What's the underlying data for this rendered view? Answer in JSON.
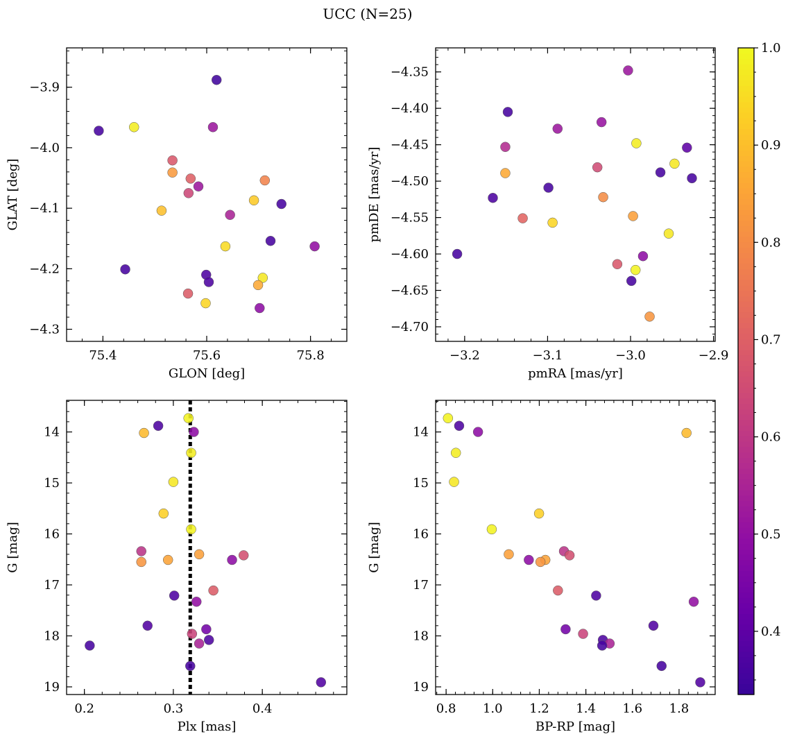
{
  "figure": {
    "title": "UCC (N=25)"
  },
  "colorbar": {
    "ticks": [
      0.4,
      0.5,
      0.6,
      0.7,
      0.8,
      0.9,
      1.0
    ],
    "tick_labels": [
      "0.4",
      "0.5",
      "0.6",
      "0.7",
      "0.8",
      "0.9",
      "1.0"
    ],
    "range": [
      0.335,
      1.0
    ],
    "colormap": "plasma"
  },
  "chart_data": [
    {
      "id": "galactic",
      "type": "scatter",
      "xlabel": "GLON [deg]",
      "ylabel": "GLAT [deg]",
      "xlim": [
        75.33,
        75.87
      ],
      "ylim": [
        -4.32,
        -3.835
      ],
      "xticks": [
        75.4,
        75.6,
        75.8
      ],
      "xtick_labels": [
        "75.4",
        "75.6",
        "75.8"
      ],
      "yticks": [
        -3.9,
        -4.0,
        -4.1,
        -4.2,
        -4.3
      ],
      "ytick_labels": [
        "−3.9",
        "−4.0",
        "−4.1",
        "−4.2",
        "−4.3"
      ],
      "points": [
        {
          "x": 75.619,
          "y": -3.888,
          "c": 0.35
        },
        {
          "x": 75.392,
          "y": -3.972,
          "c": 0.36
        },
        {
          "x": 75.46,
          "y": -3.966,
          "c": 0.98
        },
        {
          "x": 75.612,
          "y": -3.966,
          "c": 0.52
        },
        {
          "x": 75.534,
          "y": -4.021,
          "c": 0.68
        },
        {
          "x": 75.534,
          "y": -4.041,
          "c": 0.83
        },
        {
          "x": 75.569,
          "y": -4.051,
          "c": 0.7
        },
        {
          "x": 75.712,
          "y": -4.054,
          "c": 0.78
        },
        {
          "x": 75.584,
          "y": -4.064,
          "c": 0.52
        },
        {
          "x": 75.565,
          "y": -4.075,
          "c": 0.64
        },
        {
          "x": 75.691,
          "y": -4.087,
          "c": 0.92
        },
        {
          "x": 75.744,
          "y": -4.093,
          "c": 0.36
        },
        {
          "x": 75.513,
          "y": -4.104,
          "c": 0.9
        },
        {
          "x": 75.645,
          "y": -4.111,
          "c": 0.55
        },
        {
          "x": 75.723,
          "y": -4.154,
          "c": 0.36
        },
        {
          "x": 75.636,
          "y": -4.163,
          "c": 0.95
        },
        {
          "x": 75.808,
          "y": -4.163,
          "c": 0.5
        },
        {
          "x": 75.443,
          "y": -4.201,
          "c": 0.36
        },
        {
          "x": 75.599,
          "y": -4.21,
          "c": 0.37
        },
        {
          "x": 75.604,
          "y": -4.222,
          "c": 0.37
        },
        {
          "x": 75.708,
          "y": -4.215,
          "c": 0.97
        },
        {
          "x": 75.699,
          "y": -4.227,
          "c": 0.86
        },
        {
          "x": 75.564,
          "y": -4.241,
          "c": 0.69
        },
        {
          "x": 75.598,
          "y": -4.257,
          "c": 0.94
        },
        {
          "x": 75.702,
          "y": -4.265,
          "c": 0.49
        }
      ]
    },
    {
      "id": "propermotion",
      "type": "scatter",
      "xlabel": "pmRA [mas/yr]",
      "ylabel": "pmDE [mas/yr]",
      "xlim": [
        -3.235,
        -2.898
      ],
      "ylim": [
        -4.72,
        -4.317
      ],
      "xticks": [
        -3.2,
        -3.1,
        -3.0,
        -2.9
      ],
      "xtick_labels": [
        "−3.2",
        "−3.1",
        "−3.0",
        "−2.9"
      ],
      "yticks": [
        -4.35,
        -4.4,
        -4.45,
        -4.5,
        -4.55,
        -4.6,
        -4.65,
        -4.7
      ],
      "ytick_labels": [
        "−4.35",
        "−4.40",
        "−4.45",
        "−4.50",
        "−4.55",
        "−4.60",
        "−4.65",
        "−4.70"
      ],
      "points": [
        {
          "x": -3.003,
          "y": -4.348,
          "c": 0.52
        },
        {
          "x": -3.148,
          "y": -4.405,
          "c": 0.36
        },
        {
          "x": -3.035,
          "y": -4.419,
          "c": 0.51
        },
        {
          "x": -3.088,
          "y": -4.428,
          "c": 0.52
        },
        {
          "x": -2.993,
          "y": -4.448,
          "c": 0.98
        },
        {
          "x": -3.151,
          "y": -4.453,
          "c": 0.57
        },
        {
          "x": -2.932,
          "y": -4.454,
          "c": 0.4
        },
        {
          "x": -2.947,
          "y": -4.476,
          "c": 0.97
        },
        {
          "x": -3.04,
          "y": -4.481,
          "c": 0.65
        },
        {
          "x": -2.964,
          "y": -4.488,
          "c": 0.36
        },
        {
          "x": -3.151,
          "y": -4.489,
          "c": 0.86
        },
        {
          "x": -2.926,
          "y": -4.496,
          "c": 0.36
        },
        {
          "x": -3.099,
          "y": -4.509,
          "c": 0.36
        },
        {
          "x": -3.033,
          "y": -4.522,
          "c": 0.8
        },
        {
          "x": -3.166,
          "y": -4.523,
          "c": 0.37
        },
        {
          "x": -2.997,
          "y": -4.548,
          "c": 0.84
        },
        {
          "x": -3.13,
          "y": -4.551,
          "c": 0.71
        },
        {
          "x": -3.094,
          "y": -4.557,
          "c": 0.94
        },
        {
          "x": -2.954,
          "y": -4.572,
          "c": 0.97
        },
        {
          "x": -3.209,
          "y": -4.6,
          "c": 0.36
        },
        {
          "x": -2.985,
          "y": -4.603,
          "c": 0.49
        },
        {
          "x": -3.016,
          "y": -4.614,
          "c": 0.68
        },
        {
          "x": -2.994,
          "y": -4.622,
          "c": 0.99
        },
        {
          "x": -2.999,
          "y": -4.637,
          "c": 0.36
        },
        {
          "x": -2.977,
          "y": -4.686,
          "c": 0.82
        }
      ]
    },
    {
      "id": "plx",
      "type": "scatter",
      "xlabel": "Plx [mas]",
      "ylabel": "G [mag]",
      "xlim": [
        0.18,
        0.495
      ],
      "ylim": [
        19.15,
        13.38
      ],
      "xticks": [
        0.2,
        0.3,
        0.4
      ],
      "xtick_labels": [
        "0.2",
        "0.3",
        "0.4"
      ],
      "yticks": [
        14,
        15,
        16,
        17,
        18,
        19
      ],
      "ytick_labels": [
        "14",
        "15",
        "16",
        "17",
        "18",
        "19"
      ],
      "vline": 0.319,
      "points": [
        {
          "x": 0.317,
          "y": 13.73,
          "c": 0.99
        },
        {
          "x": 0.283,
          "y": 13.88,
          "c": 0.37
        },
        {
          "x": 0.267,
          "y": 14.02,
          "c": 0.89
        },
        {
          "x": 0.323,
          "y": 14.0,
          "c": 0.49
        },
        {
          "x": 0.32,
          "y": 14.41,
          "c": 0.98
        },
        {
          "x": 0.3,
          "y": 14.98,
          "c": 0.97
        },
        {
          "x": 0.289,
          "y": 15.6,
          "c": 0.93
        },
        {
          "x": 0.32,
          "y": 15.91,
          "c": 0.99
        },
        {
          "x": 0.264,
          "y": 16.34,
          "c": 0.59
        },
        {
          "x": 0.329,
          "y": 16.4,
          "c": 0.84
        },
        {
          "x": 0.379,
          "y": 16.42,
          "c": 0.66
        },
        {
          "x": 0.264,
          "y": 16.55,
          "c": 0.82
        },
        {
          "x": 0.294,
          "y": 16.51,
          "c": 0.85
        },
        {
          "x": 0.366,
          "y": 16.51,
          "c": 0.49
        },
        {
          "x": 0.345,
          "y": 17.11,
          "c": 0.69
        },
        {
          "x": 0.301,
          "y": 17.21,
          "c": 0.37
        },
        {
          "x": 0.326,
          "y": 17.33,
          "c": 0.5
        },
        {
          "x": 0.271,
          "y": 17.8,
          "c": 0.38
        },
        {
          "x": 0.337,
          "y": 17.87,
          "c": 0.44
        },
        {
          "x": 0.321,
          "y": 17.96,
          "c": 0.63
        },
        {
          "x": 0.34,
          "y": 18.08,
          "c": 0.37
        },
        {
          "x": 0.329,
          "y": 18.15,
          "c": 0.55
        },
        {
          "x": 0.206,
          "y": 18.19,
          "c": 0.36
        },
        {
          "x": 0.319,
          "y": 18.59,
          "c": 0.36
        },
        {
          "x": 0.466,
          "y": 18.91,
          "c": 0.38
        }
      ]
    },
    {
      "id": "cmd",
      "type": "scatter",
      "xlabel": "BP-RP [mag]",
      "ylabel": "G [mag]",
      "xlim": [
        0.755,
        1.955
      ],
      "ylim": [
        19.15,
        13.38
      ],
      "xticks": [
        0.8,
        1.0,
        1.2,
        1.4,
        1.6,
        1.8
      ],
      "xtick_labels": [
        "0.8",
        "1.0",
        "1.2",
        "1.4",
        "1.6",
        "1.8"
      ],
      "yticks": [
        14,
        15,
        16,
        17,
        18,
        19
      ],
      "ytick_labels": [
        "14",
        "15",
        "16",
        "17",
        "18",
        "19"
      ],
      "points": [
        {
          "x": 0.808,
          "y": 13.73,
          "c": 0.99
        },
        {
          "x": 0.856,
          "y": 13.88,
          "c": 0.37
        },
        {
          "x": 0.937,
          "y": 14.0,
          "c": 0.49
        },
        {
          "x": 1.832,
          "y": 14.02,
          "c": 0.89
        },
        {
          "x": 0.842,
          "y": 14.41,
          "c": 0.98
        },
        {
          "x": 0.834,
          "y": 14.98,
          "c": 0.97
        },
        {
          "x": 1.199,
          "y": 15.6,
          "c": 0.93
        },
        {
          "x": 0.996,
          "y": 15.91,
          "c": 0.99
        },
        {
          "x": 1.306,
          "y": 16.34,
          "c": 0.59
        },
        {
          "x": 1.069,
          "y": 16.4,
          "c": 0.84
        },
        {
          "x": 1.33,
          "y": 16.42,
          "c": 0.66
        },
        {
          "x": 1.155,
          "y": 16.51,
          "c": 0.49
        },
        {
          "x": 1.226,
          "y": 16.51,
          "c": 0.85
        },
        {
          "x": 1.205,
          "y": 16.55,
          "c": 0.82
        },
        {
          "x": 1.28,
          "y": 17.11,
          "c": 0.69
        },
        {
          "x": 1.444,
          "y": 17.21,
          "c": 0.37
        },
        {
          "x": 1.863,
          "y": 17.33,
          "c": 0.5
        },
        {
          "x": 1.69,
          "y": 17.8,
          "c": 0.38
        },
        {
          "x": 1.313,
          "y": 17.87,
          "c": 0.44
        },
        {
          "x": 1.388,
          "y": 17.96,
          "c": 0.63
        },
        {
          "x": 1.473,
          "y": 18.08,
          "c": 0.37
        },
        {
          "x": 1.502,
          "y": 18.15,
          "c": 0.55
        },
        {
          "x": 1.47,
          "y": 18.19,
          "c": 0.36
        },
        {
          "x": 1.725,
          "y": 18.59,
          "c": 0.36
        },
        {
          "x": 1.891,
          "y": 18.91,
          "c": 0.38
        }
      ]
    }
  ]
}
